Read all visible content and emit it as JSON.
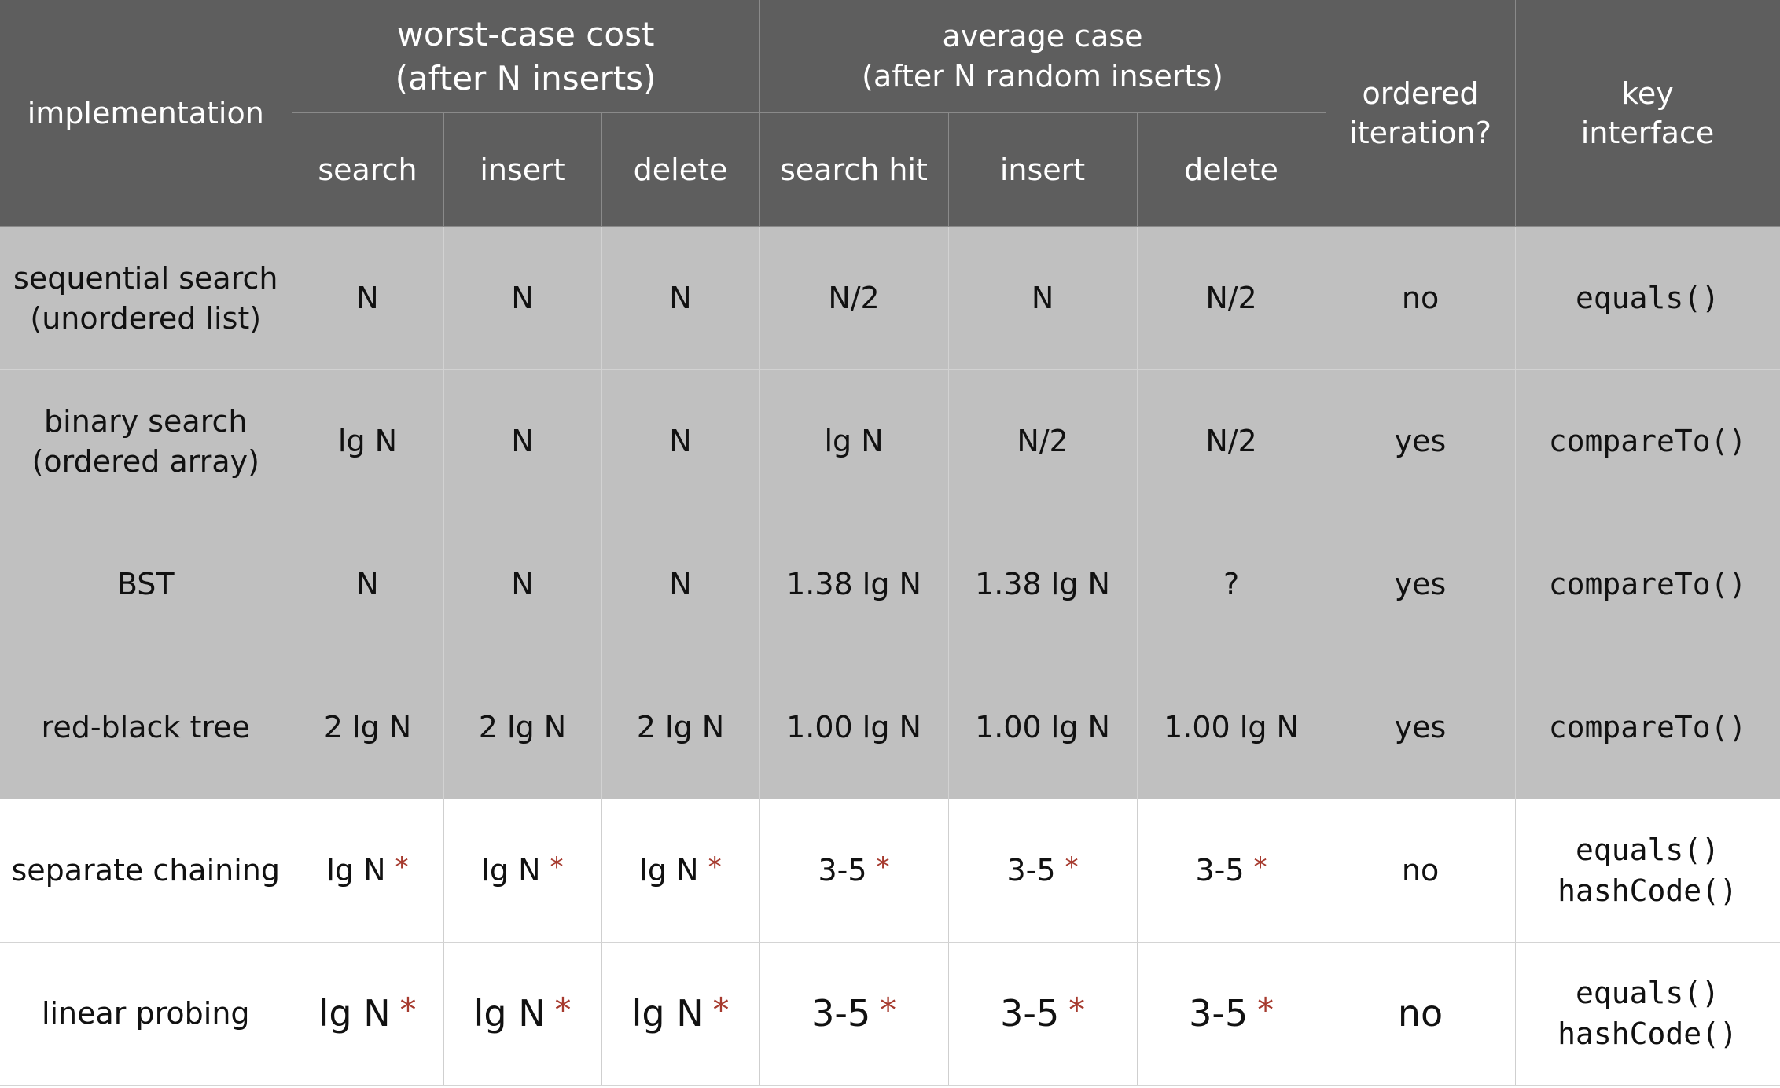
{
  "header": {
    "implementation": "implementation",
    "worst_case": {
      "line1": "worst-case cost",
      "line2": "(after N inserts)"
    },
    "average_case": {
      "line1": "average case",
      "line2": "(after N random inserts)"
    },
    "ordered_iteration": {
      "line1": "ordered",
      "line2": "iteration?"
    },
    "key_interface": {
      "line1": "key",
      "line2": "interface"
    },
    "worst_sub": {
      "search": "search",
      "insert": "insert",
      "delete": "delete"
    },
    "avg_sub": {
      "search_hit": "search hit",
      "insert": "insert",
      "delete": "delete"
    }
  },
  "star": "*",
  "rows": [
    {
      "impl1": "sequential search",
      "impl2": "(unordered list)",
      "ws": "N",
      "wi": "N",
      "wd": "N",
      "as": "N/2",
      "ai": "N",
      "ad": "N/2",
      "ordered": "no",
      "key1": "equals()",
      "key2": ""
    },
    {
      "impl1": "binary search",
      "impl2": "(ordered array)",
      "ws": "lg N",
      "wi": "N",
      "wd": "N",
      "as": "lg N",
      "ai": "N/2",
      "ad": "N/2",
      "ordered": "yes",
      "key1": "compareTo()",
      "key2": ""
    },
    {
      "impl1": "BST",
      "impl2": "",
      "ws": "N",
      "wi": "N",
      "wd": "N",
      "as": "1.38 lg N",
      "ai": "1.38 lg N",
      "ad": "?",
      "ordered": "yes",
      "key1": "compareTo()",
      "key2": ""
    },
    {
      "impl1": "red-black tree",
      "impl2": "",
      "ws": "2 lg N",
      "wi": "2 lg N",
      "wd": "2 lg N",
      "as": "1.00 lg N",
      "ai": "1.00 lg N",
      "ad": "1.00 lg N",
      "ordered": "yes",
      "key1": "compareTo()",
      "key2": ""
    },
    {
      "impl1": "separate chaining",
      "impl2": "",
      "ws": "lg N",
      "wi": "lg N",
      "wd": "lg N",
      "as": "3-5",
      "ai": "3-5",
      "ad": "3-5",
      "ordered": "no",
      "key1": "equals()",
      "key2": "hashCode()"
    },
    {
      "impl1": "linear probing",
      "impl2": "",
      "ws": "lg N",
      "wi": "lg N",
      "wd": "lg N",
      "as": "3-5",
      "ai": "3-5",
      "ad": "3-5",
      "ordered": "no",
      "key1": "equals()",
      "key2": "hashCode()"
    }
  ]
}
